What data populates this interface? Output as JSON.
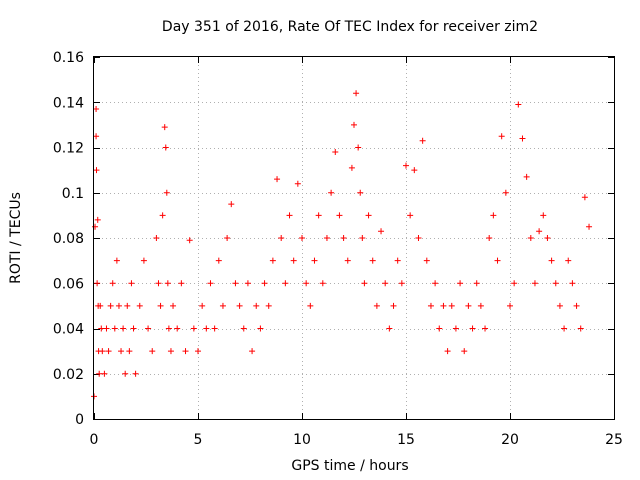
{
  "chart_data": {
    "type": "scatter",
    "title": "Day 351 of 2016, Rate Of TEC Index for receiver zim2",
    "xlabel": "GPS time / hours",
    "ylabel": "ROTI / TECUs",
    "xlim": [
      0,
      25
    ],
    "ylim": [
      0,
      0.16
    ],
    "xticks": [
      0,
      5,
      10,
      15,
      20,
      25
    ],
    "yticks": [
      0,
      0.02,
      0.04,
      0.06,
      0.08,
      0.1,
      0.12,
      0.14,
      0.16
    ],
    "xtick_labels": [
      "0",
      "5",
      "10",
      "15",
      "20",
      "25"
    ],
    "ytick_labels": [
      "0",
      "0.02",
      "0.04",
      "0.06",
      "0.08",
      "0.1",
      "0.12",
      "0.14",
      "0.16"
    ],
    "grid": true,
    "marker": "plus",
    "color": "#ff0000",
    "series": [
      {
        "x": [
          0.0,
          0.05,
          0.1,
          0.1,
          0.12,
          0.15,
          0.18,
          0.2,
          0.22,
          0.25,
          0.3,
          0.35,
          0.4,
          0.5,
          0.6,
          0.7,
          0.8,
          0.9,
          1.0,
          1.1,
          1.2,
          1.3,
          1.4,
          1.5,
          1.6,
          1.7,
          1.8,
          1.9,
          2.0,
          2.2,
          2.4,
          2.6,
          2.8,
          3.0,
          3.1,
          3.2,
          3.3,
          3.4,
          3.45,
          3.5,
          3.55,
          3.6,
          3.7,
          3.8,
          4.0,
          4.2,
          4.4,
          4.6,
          4.8,
          5.0,
          5.2,
          5.4,
          5.6,
          5.8,
          6.0,
          6.2,
          6.4,
          6.6,
          6.8,
          7.0,
          7.2,
          7.4,
          7.6,
          7.8,
          8.0,
          8.2,
          8.4,
          8.6,
          8.8,
          9.0,
          9.2,
          9.4,
          9.6,
          9.8,
          10.0,
          10.2,
          10.4,
          10.6,
          10.8,
          11.0,
          11.2,
          11.4,
          11.6,
          11.8,
          12.0,
          12.2,
          12.4,
          12.5,
          12.6,
          12.7,
          12.8,
          12.9,
          13.0,
          13.2,
          13.4,
          13.6,
          13.8,
          14.0,
          14.2,
          14.4,
          14.6,
          14.8,
          15.0,
          15.2,
          15.4,
          15.6,
          15.8,
          16.0,
          16.2,
          16.4,
          16.6,
          16.8,
          17.0,
          17.2,
          17.4,
          17.6,
          17.8,
          18.0,
          18.2,
          18.4,
          18.6,
          18.8,
          19.0,
          19.2,
          19.4,
          19.6,
          19.8,
          20.0,
          20.2,
          20.4,
          20.6,
          20.8,
          21.0,
          21.2,
          21.4,
          21.6,
          21.8,
          22.0,
          22.2,
          22.4,
          22.6,
          22.8,
          23.0,
          23.2,
          23.4,
          23.6,
          23.8
        ],
        "y": [
          0.01,
          0.085,
          0.137,
          0.125,
          0.11,
          0.06,
          0.088,
          0.05,
          0.03,
          0.02,
          0.05,
          0.04,
          0.03,
          0.02,
          0.04,
          0.03,
          0.05,
          0.06,
          0.04,
          0.07,
          0.05,
          0.03,
          0.04,
          0.02,
          0.05,
          0.03,
          0.06,
          0.04,
          0.02,
          0.05,
          0.07,
          0.04,
          0.03,
          0.08,
          0.06,
          0.05,
          0.09,
          0.129,
          0.12,
          0.1,
          0.06,
          0.04,
          0.03,
          0.05,
          0.04,
          0.06,
          0.03,
          0.079,
          0.04,
          0.03,
          0.05,
          0.04,
          0.06,
          0.04,
          0.07,
          0.05,
          0.08,
          0.095,
          0.06,
          0.05,
          0.04,
          0.06,
          0.03,
          0.05,
          0.04,
          0.06,
          0.05,
          0.07,
          0.106,
          0.08,
          0.06,
          0.09,
          0.07,
          0.104,
          0.08,
          0.06,
          0.05,
          0.07,
          0.09,
          0.06,
          0.08,
          0.1,
          0.118,
          0.09,
          0.08,
          0.07,
          0.111,
          0.13,
          0.144,
          0.12,
          0.1,
          0.08,
          0.06,
          0.09,
          0.07,
          0.05,
          0.083,
          0.06,
          0.04,
          0.05,
          0.07,
          0.06,
          0.112,
          0.09,
          0.11,
          0.08,
          0.123,
          0.07,
          0.05,
          0.06,
          0.04,
          0.05,
          0.03,
          0.05,
          0.04,
          0.06,
          0.03,
          0.05,
          0.04,
          0.06,
          0.05,
          0.04,
          0.08,
          0.09,
          0.07,
          0.125,
          0.1,
          0.05,
          0.06,
          0.139,
          0.124,
          0.107,
          0.08,
          0.06,
          0.083,
          0.09,
          0.08,
          0.07,
          0.06,
          0.05,
          0.04,
          0.07,
          0.06,
          0.05,
          0.04,
          0.098,
          0.085
        ]
      }
    ]
  }
}
